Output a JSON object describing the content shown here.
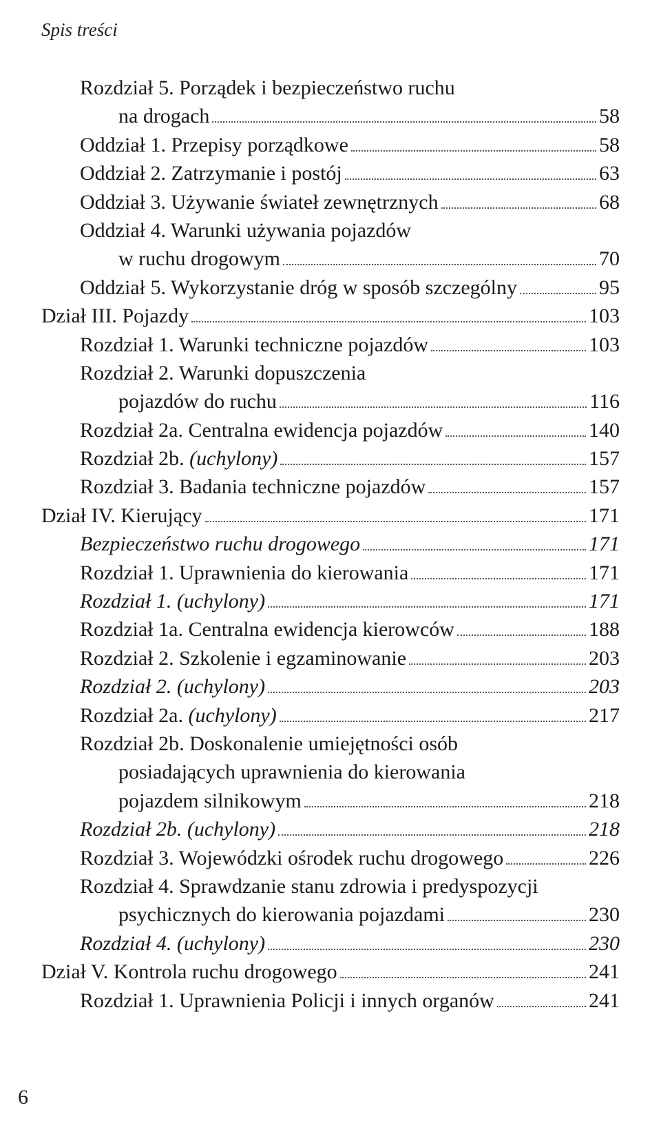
{
  "header": "Spis treści",
  "page_number": "6",
  "entries": [
    {
      "indent": 1,
      "label": "Rozdział 5. Porządek i bezpieczeństwo ruchu",
      "page": null,
      "italic": false
    },
    {
      "indent": 2,
      "label": "na drogach",
      "page": "58",
      "italic": false,
      "continuation": true
    },
    {
      "indent": 1,
      "label": "Oddział 1. Przepisy porządkowe",
      "page": "58",
      "italic": false
    },
    {
      "indent": 1,
      "label": "Oddział 2. Zatrzymanie i postój",
      "page": "63",
      "italic": false
    },
    {
      "indent": 1,
      "label": "Oddział 3. Używanie świateł zewnętrznych",
      "page": "68",
      "italic": false
    },
    {
      "indent": 1,
      "label": "Oddział 4. Warunki używania pojazdów",
      "page": null,
      "italic": false
    },
    {
      "indent": 2,
      "label": "w ruchu drogowym",
      "page": "70",
      "italic": false,
      "continuation": true
    },
    {
      "indent": 1,
      "label": "Oddział 5. Wykorzystanie dróg w sposób szczególny",
      "page": "95",
      "italic": false
    },
    {
      "indent": 0,
      "label": "Dział III. Pojazdy",
      "page": "103",
      "italic": false
    },
    {
      "indent": 1,
      "label": "Rozdział 1. Warunki techniczne pojazdów",
      "page": "103",
      "italic": false
    },
    {
      "indent": 1,
      "label": "Rozdział 2. Warunki dopuszczenia",
      "page": null,
      "italic": false
    },
    {
      "indent": 2,
      "label": "pojazdów do ruchu",
      "page": "116",
      "italic": false,
      "continuation": true
    },
    {
      "indent": 1,
      "label": "Rozdział 2a. Centralna ewidencja pojazdów",
      "page": "140",
      "italic": false
    },
    {
      "indent": 1,
      "label_parts": [
        {
          "t": "Rozdział 2b. ",
          "i": false
        },
        {
          "t": "(uchylony)",
          "i": true
        }
      ],
      "page": "157",
      "italic": false
    },
    {
      "indent": 1,
      "label": "Rozdział 3. Badania techniczne pojazdów",
      "page": "157",
      "italic": false
    },
    {
      "indent": 0,
      "label": "Dział IV. Kierujący",
      "page": "171",
      "italic": false
    },
    {
      "indent": 1,
      "label": "Bezpieczeństwo ruchu drogowego",
      "page": "171",
      "italic": true
    },
    {
      "indent": 1,
      "label": "Rozdział 1. Uprawnienia do kierowania",
      "page": "171",
      "italic": false
    },
    {
      "indent": 1,
      "label": "Rozdział 1. (uchylony)",
      "page": "171",
      "italic": true
    },
    {
      "indent": 1,
      "label": "Rozdział 1a. Centralna ewidencja kierowców",
      "page": "188",
      "italic": false
    },
    {
      "indent": 1,
      "label": "Rozdział 2. Szkolenie i egzaminowanie",
      "page": "203",
      "italic": false
    },
    {
      "indent": 1,
      "label": "Rozdział 2. (uchylony)",
      "page": "203",
      "italic": true
    },
    {
      "indent": 1,
      "label_parts": [
        {
          "t": "Rozdział 2a. ",
          "i": false
        },
        {
          "t": "(uchylony)",
          "i": true
        }
      ],
      "page": "217",
      "italic": false
    },
    {
      "indent": 1,
      "label": "Rozdział 2b. Doskonalenie umiejętności osób",
      "page": null,
      "italic": false
    },
    {
      "indent": 2,
      "label": "posiadających uprawnienia do kierowania",
      "page": null,
      "italic": false,
      "continuation": true
    },
    {
      "indent": 2,
      "label": "pojazdem silnikowym",
      "page": "218",
      "italic": false,
      "continuation": true
    },
    {
      "indent": 1,
      "label": "Rozdział 2b. (uchylony)",
      "page": "218",
      "italic": true
    },
    {
      "indent": 1,
      "label": "Rozdział 3. Wojewódzki ośrodek ruchu drogowego",
      "page": "226",
      "italic": false
    },
    {
      "indent": 1,
      "label": "Rozdział 4. Sprawdzanie stanu zdrowia i predyspozycji",
      "page": null,
      "italic": false
    },
    {
      "indent": 2,
      "label": "psychicznych do kierowania pojazdami",
      "page": "230",
      "italic": false,
      "continuation": true
    },
    {
      "indent": 1,
      "label": "Rozdział 4. (uchylony)",
      "page": "230",
      "italic": true
    },
    {
      "indent": 0,
      "label": "Dział V. Kontrola ruchu drogowego",
      "page": "241",
      "italic": false
    },
    {
      "indent": 1,
      "label": "Rozdział 1. Uprawnienia Policji i innych organów",
      "page": "241",
      "italic": false
    }
  ]
}
